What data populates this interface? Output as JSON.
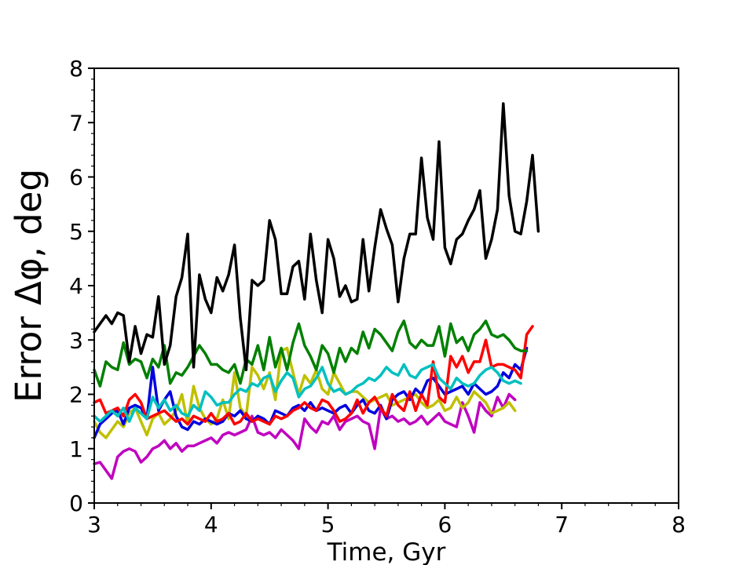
{
  "chart_data": {
    "type": "line",
    "title": "",
    "xlabel": "Time, Gyr",
    "ylabel": "Error Δφ, deg",
    "xlim": [
      3,
      8
    ],
    "ylim": [
      0,
      8
    ],
    "xticks": [
      3,
      4,
      5,
      6,
      7,
      8
    ],
    "yticks": [
      0,
      1,
      2,
      3,
      4,
      5,
      6,
      7,
      8
    ],
    "grid": false,
    "legend": "none",
    "x": [
      3.0,
      3.05,
      3.1,
      3.15,
      3.2,
      3.25,
      3.3,
      3.35,
      3.4,
      3.45,
      3.5,
      3.55,
      3.6,
      3.65,
      3.7,
      3.75,
      3.8,
      3.85,
      3.9,
      3.95,
      4.0,
      4.05,
      4.1,
      4.15,
      4.2,
      4.25,
      4.3,
      4.35,
      4.4,
      4.45,
      4.5,
      4.55,
      4.6,
      4.65,
      4.7,
      4.75,
      4.8,
      4.85,
      4.9,
      4.95,
      5.0,
      5.05,
      5.1,
      5.15,
      5.2,
      5.25,
      5.3,
      5.35,
      5.4,
      5.45,
      5.5,
      5.55,
      5.6,
      5.65,
      5.7,
      5.75,
      5.8,
      5.85,
      5.9,
      5.95,
      6.0,
      6.05,
      6.1,
      6.15,
      6.2,
      6.25,
      6.3,
      6.35,
      6.4,
      6.45,
      6.5,
      6.55,
      6.6,
      6.65,
      6.7,
      6.75,
      6.8,
      6.85,
      6.9,
      6.95,
      7.0,
      7.05,
      7.1,
      7.15,
      7.2,
      7.25,
      7.3,
      7.35,
      7.4,
      7.45,
      7.5,
      7.55,
      7.6,
      7.65,
      7.7,
      7.75,
      7.8,
      7.85,
      7.9,
      7.95,
      8.0
    ],
    "series": [
      {
        "color": "#000000",
        "values": [
          3.15,
          3.3,
          3.45,
          3.3,
          3.5,
          3.45,
          2.6,
          3.25,
          2.75,
          3.1,
          3.05,
          3.8,
          2.55,
          2.9,
          3.8,
          4.15,
          4.95,
          2.5,
          4.2,
          3.75,
          3.5,
          4.15,
          3.9,
          4.2,
          4.75,
          3.4,
          2.45,
          4.1,
          4.0,
          4.1,
          5.2,
          4.85,
          3.85,
          3.85,
          4.35,
          4.45,
          3.75,
          4.95,
          4.1,
          3.5,
          4.85,
          4.5,
          3.8,
          4.0,
          3.7,
          3.75,
          4.85,
          3.9,
          4.7,
          5.4,
          5.05,
          4.75,
          3.7,
          4.5,
          4.95,
          4.95,
          6.35,
          5.25,
          4.85,
          6.65,
          4.7,
          4.4,
          4.85,
          4.95,
          5.2,
          5.4,
          5.75,
          4.5,
          4.85,
          5.4,
          7.35,
          5.65,
          5.0,
          4.95,
          5.55,
          6.4,
          5.0,
          null,
          null,
          null,
          null,
          null,
          null,
          null,
          null,
          null,
          null,
          null,
          null,
          null,
          null,
          null,
          null,
          null,
          null,
          null,
          null,
          null,
          null,
          null,
          null
        ]
      },
      {
        "color": "#008000",
        "values": [
          2.45,
          2.15,
          2.6,
          2.5,
          2.45,
          2.95,
          2.55,
          2.65,
          2.6,
          2.3,
          2.65,
          2.5,
          2.9,
          2.2,
          2.4,
          2.35,
          2.5,
          2.7,
          2.9,
          2.75,
          2.55,
          2.55,
          2.45,
          2.4,
          2.55,
          2.2,
          2.65,
          2.55,
          2.9,
          2.45,
          3.05,
          2.5,
          2.85,
          2.45,
          2.95,
          3.3,
          2.9,
          2.7,
          2.45,
          2.9,
          2.75,
          2.4,
          2.85,
          2.6,
          2.85,
          2.75,
          3.15,
          2.85,
          3.2,
          3.1,
          2.95,
          2.8,
          3.15,
          3.35,
          2.95,
          2.85,
          3.0,
          2.9,
          2.9,
          3.25,
          2.7,
          3.3,
          2.95,
          3.05,
          2.8,
          3.1,
          3.2,
          3.35,
          3.1,
          3.05,
          3.1,
          3.0,
          2.85,
          2.8,
          2.8,
          null,
          null,
          null,
          null,
          null,
          null,
          null,
          null,
          null,
          null,
          null,
          null,
          null,
          null,
          null,
          null,
          null,
          null,
          null,
          null,
          null,
          null,
          null,
          null,
          null,
          null
        ]
      },
      {
        "color": "#00c0c0",
        "values": [
          1.6,
          1.5,
          1.6,
          1.7,
          1.6,
          1.75,
          1.5,
          1.75,
          1.65,
          1.55,
          1.95,
          1.75,
          1.9,
          1.7,
          1.8,
          1.65,
          1.6,
          1.8,
          1.7,
          2.05,
          1.95,
          1.8,
          1.85,
          1.85,
          2.0,
          2.1,
          2.05,
          2.2,
          2.15,
          2.3,
          2.35,
          2.05,
          2.25,
          2.4,
          2.3,
          1.95,
          2.1,
          2.15,
          2.3,
          2.5,
          2.2,
          2.05,
          2.1,
          2.0,
          2.05,
          2.15,
          2.2,
          2.3,
          2.25,
          2.35,
          2.5,
          2.4,
          2.35,
          2.55,
          2.35,
          2.3,
          2.45,
          2.5,
          2.55,
          2.3,
          2.2,
          2.1,
          2.3,
          2.2,
          2.15,
          2.2,
          2.35,
          2.45,
          2.5,
          2.4,
          2.25,
          2.2,
          2.25,
          2.2,
          null,
          null,
          null,
          null,
          null,
          null,
          null,
          null,
          null,
          null,
          null,
          null,
          null,
          null,
          null,
          null,
          null,
          null,
          null,
          null,
          null,
          null,
          null,
          null,
          null,
          null,
          null
        ]
      },
      {
        "color": "#ff0000",
        "values": [
          1.85,
          1.9,
          1.65,
          1.7,
          1.75,
          1.6,
          1.9,
          2.0,
          1.85,
          1.55,
          1.6,
          1.65,
          1.7,
          1.6,
          1.5,
          1.55,
          1.45,
          1.6,
          1.55,
          1.5,
          1.65,
          1.5,
          1.55,
          1.65,
          1.45,
          1.5,
          1.65,
          1.5,
          1.55,
          1.5,
          1.45,
          1.6,
          1.55,
          1.6,
          1.7,
          1.75,
          1.85,
          1.75,
          1.7,
          1.9,
          1.85,
          1.7,
          1.5,
          1.55,
          1.65,
          1.9,
          1.65,
          1.85,
          1.95,
          1.75,
          1.6,
          2.0,
          1.8,
          1.7,
          2.05,
          1.7,
          2.0,
          1.8,
          2.6,
          1.95,
          1.85,
          2.7,
          2.5,
          2.7,
          2.4,
          2.6,
          2.6,
          3.0,
          2.5,
          2.55,
          2.55,
          2.5,
          2.45,
          2.3,
          3.1,
          3.25,
          null,
          null,
          null,
          null,
          null,
          null,
          null,
          null,
          null,
          null,
          null,
          null,
          null,
          null,
          null,
          null,
          null,
          null,
          null,
          null,
          null,
          null,
          null,
          null,
          null
        ]
      },
      {
        "color": "#0000e0",
        "values": [
          1.2,
          1.45,
          1.55,
          1.65,
          1.7,
          1.45,
          1.75,
          1.8,
          1.75,
          1.55,
          2.5,
          1.7,
          1.9,
          2.05,
          1.6,
          1.4,
          1.35,
          1.5,
          1.45,
          1.55,
          1.5,
          1.45,
          1.5,
          1.65,
          1.6,
          1.7,
          1.55,
          1.5,
          1.6,
          1.55,
          1.45,
          1.7,
          1.65,
          1.6,
          1.75,
          1.8,
          1.7,
          1.85,
          1.7,
          1.75,
          1.7,
          1.65,
          1.75,
          1.8,
          1.65,
          1.8,
          1.9,
          1.7,
          1.65,
          1.8,
          1.55,
          1.9,
          2.0,
          2.05,
          1.9,
          2.1,
          2.0,
          2.25,
          2.3,
          2.15,
          2.0,
          2.05,
          2.1,
          2.15,
          2.0,
          2.2,
          2.1,
          2.0,
          2.05,
          2.15,
          2.4,
          2.3,
          2.55,
          2.45,
          2.85,
          null,
          null,
          null,
          null,
          null,
          null,
          null,
          null,
          null,
          null,
          null,
          null,
          null,
          null,
          null,
          null,
          null,
          null,
          null,
          null,
          null,
          null,
          null,
          null,
          null,
          null
        ]
      },
      {
        "color": "#c0c000",
        "values": [
          1.5,
          1.3,
          1.2,
          1.35,
          1.5,
          1.4,
          1.65,
          1.75,
          1.5,
          1.25,
          1.55,
          1.65,
          1.45,
          1.55,
          1.7,
          2.0,
          1.45,
          2.15,
          1.75,
          1.55,
          1.45,
          1.55,
          1.9,
          1.55,
          2.4,
          1.75,
          1.6,
          2.5,
          2.35,
          2.1,
          2.4,
          1.9,
          2.8,
          2.85,
          2.4,
          2.0,
          2.35,
          2.2,
          2.45,
          2.1,
          2.0,
          2.4,
          2.2,
          2.0,
          2.05,
          2.05,
          1.95,
          1.85,
          1.9,
          1.95,
          2.0,
          1.8,
          1.85,
          1.9,
          1.95,
          2.0,
          1.85,
          1.75,
          1.8,
          1.9,
          1.7,
          1.75,
          1.95,
          1.75,
          1.85,
          2.05,
          1.95,
          1.85,
          1.65,
          1.7,
          1.75,
          1.85,
          1.7,
          null,
          null,
          null,
          null,
          null,
          null,
          null,
          null,
          null,
          null,
          null,
          null,
          null,
          null,
          null,
          null,
          null,
          null,
          null,
          null,
          null,
          null,
          null,
          null,
          null,
          null,
          null,
          null
        ]
      },
      {
        "color": "#c000c0",
        "values": [
          0.72,
          0.75,
          0.6,
          0.45,
          0.85,
          0.95,
          1.0,
          0.95,
          0.75,
          0.85,
          1.0,
          1.05,
          1.15,
          1.0,
          1.1,
          0.95,
          1.05,
          1.05,
          1.1,
          1.15,
          1.2,
          1.1,
          1.25,
          1.3,
          1.25,
          1.3,
          1.35,
          1.6,
          1.3,
          1.25,
          1.3,
          1.2,
          1.35,
          1.25,
          1.15,
          1.0,
          1.55,
          1.4,
          1.3,
          1.5,
          1.45,
          1.6,
          1.35,
          1.5,
          1.55,
          1.6,
          1.5,
          1.45,
          1.0,
          1.75,
          1.55,
          1.6,
          1.5,
          1.55,
          1.45,
          1.5,
          1.6,
          1.45,
          1.55,
          1.65,
          1.5,
          1.45,
          1.4,
          1.85,
          1.6,
          1.3,
          1.85,
          1.7,
          1.6,
          1.95,
          1.75,
          2.0,
          1.9,
          null,
          null,
          null,
          null,
          null,
          null,
          null,
          null,
          null,
          null,
          null,
          null,
          null,
          null,
          null,
          null,
          null,
          null,
          null,
          null,
          null,
          null,
          null,
          null,
          null,
          null,
          null,
          null
        ]
      }
    ]
  }
}
